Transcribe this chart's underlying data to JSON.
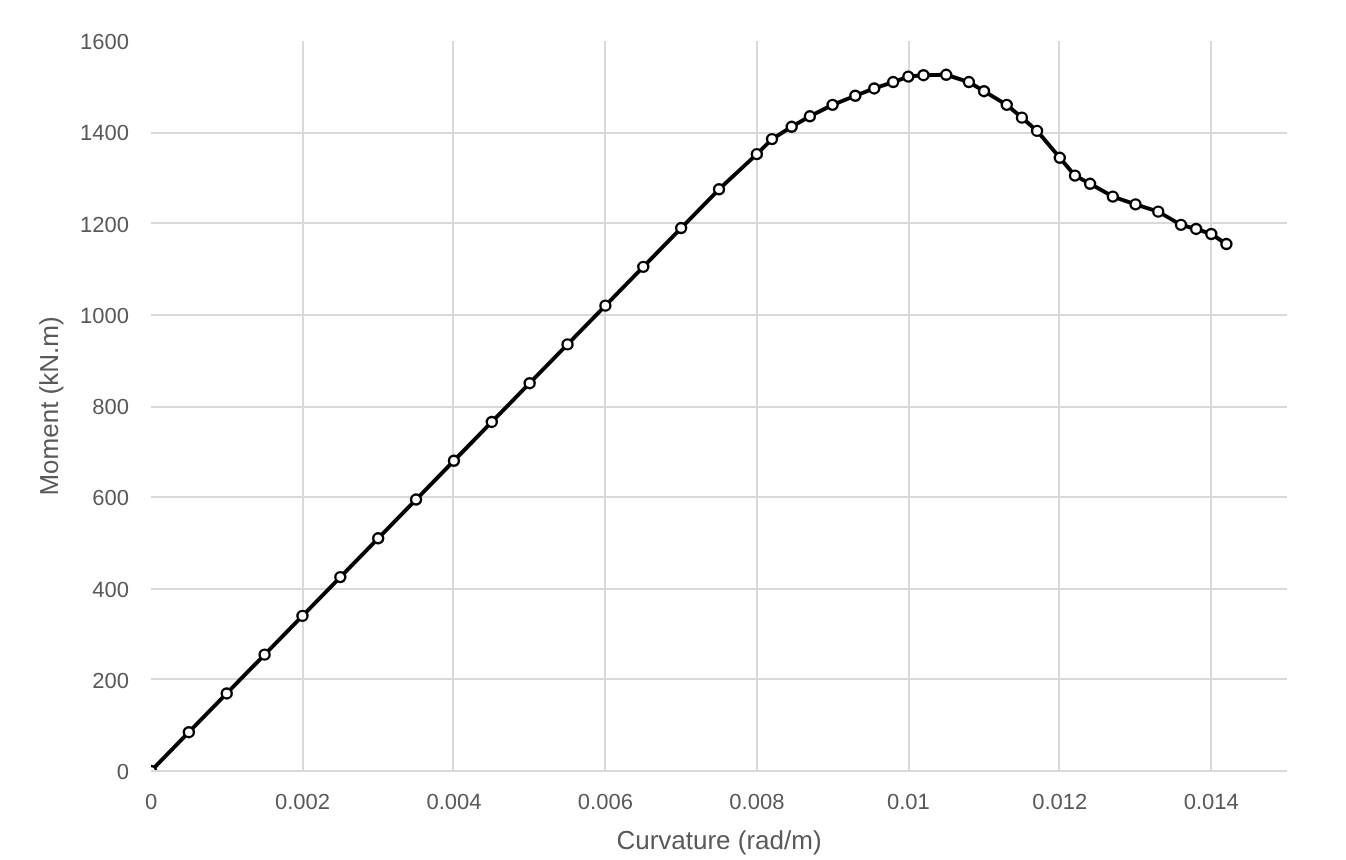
{
  "chart_data": {
    "type": "line",
    "xlabel": "Curvature (rad/m)",
    "ylabel": "Moment (kN.m)",
    "x": [
      0,
      0.0005,
      0.001,
      0.0015,
      0.002,
      0.0025,
      0.003,
      0.0035,
      0.004,
      0.0045,
      0.005,
      0.0055,
      0.006,
      0.0065,
      0.007,
      0.0075,
      0.008,
      0.0082,
      0.00846,
      0.0087,
      0.009,
      0.0093,
      0.00955,
      0.0098,
      0.01,
      0.0102,
      0.0105,
      0.0108,
      0.011,
      0.0113,
      0.0115,
      0.0117,
      0.012,
      0.0122,
      0.0124,
      0.0127,
      0.013,
      0.0133,
      0.0136,
      0.0138,
      0.014,
      0.0142
    ],
    "series": [
      {
        "color": "#000000",
        "values": [
          0,
          85,
          170,
          255,
          340,
          425,
          510,
          595,
          680,
          765,
          850,
          935,
          1020,
          1105,
          1190,
          1275,
          1352,
          1385,
          1412,
          1435,
          1460,
          1480,
          1496,
          1510,
          1522,
          1525,
          1526,
          1510,
          1490,
          1460,
          1432,
          1403,
          1344,
          1305,
          1287,
          1259,
          1242,
          1226,
          1197,
          1188,
          1177,
          1155
        ]
      }
    ],
    "xlim": [
      0,
      0.015
    ],
    "xticks": [
      0,
      0.002,
      0.004,
      0.006,
      0.008,
      0.01,
      0.012,
      0.014
    ],
    "ylim": [
      0,
      1600
    ],
    "yticks": [
      0,
      200,
      400,
      600,
      800,
      1000,
      1200,
      1400,
      1600
    ],
    "grid": true,
    "marker": "circle",
    "line_style": "solid"
  }
}
